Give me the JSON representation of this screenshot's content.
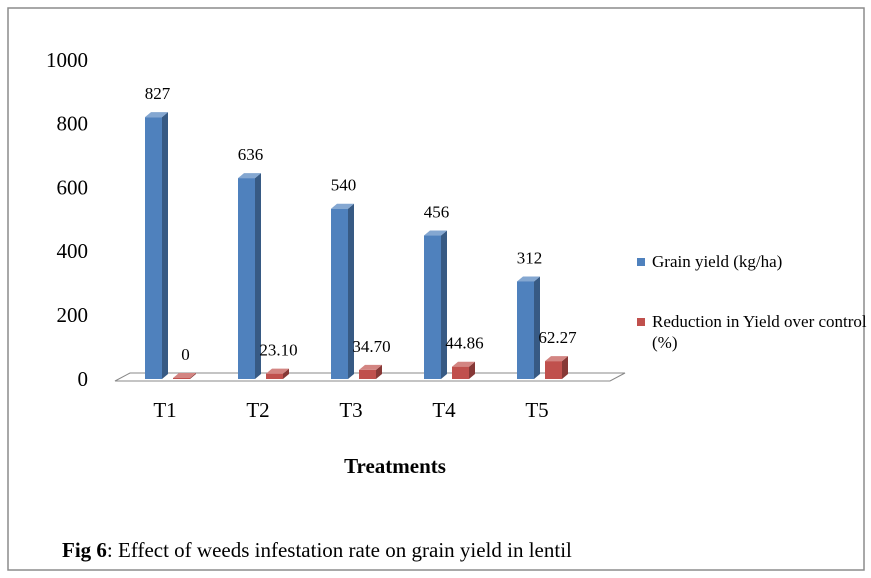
{
  "chart_data": {
    "type": "bar3d",
    "x_label": "Treatments",
    "caption_label": "Fig 6",
    "caption": ": Effect of weeds infestation rate on grain yield in lentil",
    "categories": [
      "T1",
      "T2",
      "T3",
      "T4",
      "T5"
    ],
    "series": [
      {
        "name": "Grain yield (kg/ha)",
        "color": "#4f81bd",
        "values": [
          827,
          636,
          540,
          456,
          312
        ]
      },
      {
        "name": "Reduction in Yield over control (%)",
        "color": "#c0504d",
        "values": [
          0,
          23.1,
          34.7,
          44.86,
          62.27
        ],
        "value_labels": [
          "0",
          "23.10",
          "34.70",
          "44.86",
          "62.27"
        ]
      }
    ],
    "ylim": [
      0,
      1000
    ],
    "yticks": [
      0,
      200,
      400,
      600,
      800,
      1000
    ],
    "legend": "right"
  }
}
